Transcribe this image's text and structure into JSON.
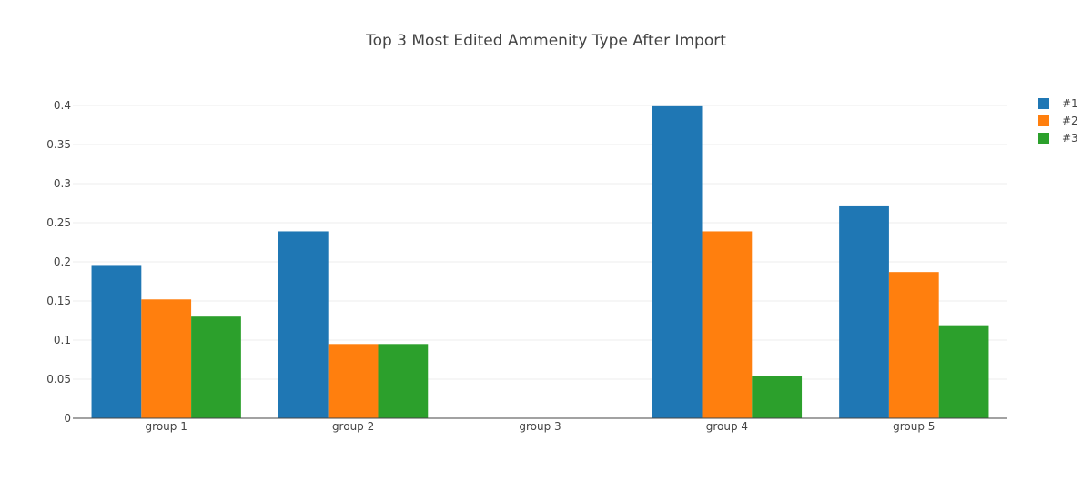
{
  "chart_data": {
    "type": "bar",
    "title": "Top 3 Most Edited Ammenity Type After Import",
    "xlabel": "",
    "ylabel": "",
    "categories": [
      "group 1",
      "group 2",
      "group 3",
      "group 4",
      "group 5"
    ],
    "series": [
      {
        "name": "#1",
        "color": "#1f77b4",
        "values": [
          0.196,
          0.239,
          0,
          0.399,
          0.271
        ]
      },
      {
        "name": "#2",
        "color": "#ff7f0e",
        "values": [
          0.152,
          0.095,
          0,
          0.239,
          0.187
        ]
      },
      {
        "name": "#3",
        "color": "#2ca02c",
        "values": [
          0.13,
          0.095,
          0,
          0.054,
          0.119
        ]
      }
    ],
    "ylim": [
      0,
      0.4
    ],
    "yticks": [
      0,
      0.05,
      0.1,
      0.15,
      0.2,
      0.25,
      0.3,
      0.35,
      0.4
    ],
    "ytick_labels": [
      "0",
      "0.05",
      "0.1",
      "0.15",
      "0.2",
      "0.25",
      "0.3",
      "0.35",
      "0.4"
    ],
    "grid": true,
    "legend_position": "top-right"
  }
}
